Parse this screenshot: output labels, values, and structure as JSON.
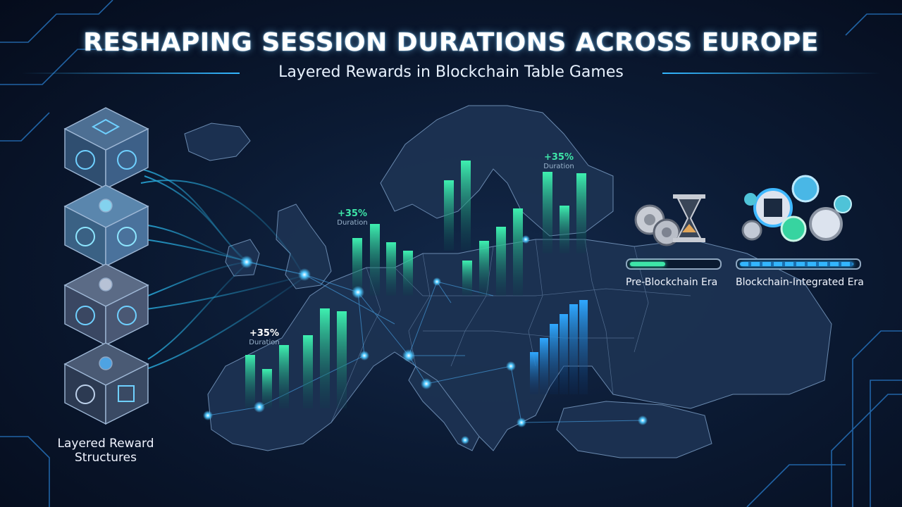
{
  "header": {
    "title": "RESHAPING SESSION DURATIONS ACROSS EUROPE",
    "subtitle": "Layered Rewards in Blockchain Table Games"
  },
  "duration_callouts": [
    {
      "percent": "+35%",
      "unit": "Duration",
      "color": "#3ee6a8"
    },
    {
      "percent": "+35%",
      "unit": "Duration",
      "color": "#3ee6a8"
    },
    {
      "percent": "+35%",
      "unit": "Duration",
      "color": "#ffffff"
    }
  ],
  "eras": {
    "pre": {
      "label": "Pre-Blockchain Era",
      "fill_fraction": 0.4,
      "color": "#3ee6a8"
    },
    "post": {
      "label": "Blockchain-Integrated Era",
      "fill_fraction": 0.97,
      "color": "#33b6ff"
    }
  },
  "cubes": {
    "caption_line1": "Layered Reward",
    "caption_line2": "Structures"
  },
  "colors": {
    "accent": "#33b6ff",
    "teal": "#3ee6a8",
    "bg": "#0b1a33"
  }
}
